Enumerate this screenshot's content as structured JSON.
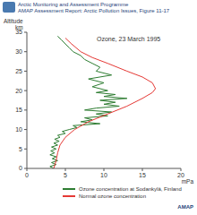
{
  "chart_data": {
    "type": "line",
    "header": [
      "Arctic Monitoring and Assessment Programme",
      "AMAP Assessment Report: Arctic Pollution Issues, Figure 11-17"
    ],
    "footer": "AMAP",
    "title": "Ozone, 23 March 1995",
    "x_label": "mPa",
    "y_label": "Altitude km",
    "xlim": [
      0,
      20
    ],
    "xticks": [
      0,
      5,
      10,
      15,
      20
    ],
    "ylim": [
      0,
      35
    ],
    "yticks": [
      0,
      5,
      10,
      15,
      20,
      25,
      30,
      35
    ],
    "grid": false,
    "series": [
      {
        "name": "Ozone concentration at Sodankylä, Finland",
        "color": "#2e7d32",
        "x": [
          3.5,
          3.0,
          3.8,
          3.2,
          4.0,
          3.3,
          3.8,
          3.0,
          3.6,
          3.1,
          3.8,
          3.2,
          4.0,
          3.5,
          4.2,
          3.6,
          4.3,
          4.0,
          5.0,
          4.6,
          5.5,
          6.5,
          6.0,
          9.5,
          7.0,
          8.5,
          7.5,
          10.5,
          9.0,
          11.0,
          7.5,
          9.0,
          12.0,
          10.0,
          11.5,
          9.5,
          13.0,
          10.0,
          11.5,
          9.0,
          10.5,
          8.5,
          10.0,
          8.0,
          11.0,
          9.0,
          9.5,
          8.5,
          7.5,
          7.0,
          6.0,
          5.5,
          5.0,
          4.5,
          4.0
        ],
        "values": [
          0,
          0.5,
          1,
          1.5,
          2,
          2.5,
          3,
          3.5,
          4,
          4.5,
          5,
          5.5,
          6,
          6.5,
          7,
          7.5,
          8,
          8.5,
          9,
          9.5,
          10,
          10.5,
          11,
          11.5,
          12,
          12.5,
          13,
          13.5,
          14,
          14.5,
          15,
          15.5,
          16,
          16.5,
          17,
          17.5,
          18,
          18.5,
          19,
          19.5,
          20,
          21,
          22,
          23,
          24,
          25,
          26,
          27,
          28,
          29,
          30,
          31,
          32,
          33,
          34
        ]
      },
      {
        "name": "Normal ozone concentration",
        "color": "#e53935",
        "x": [
          3.5,
          3.8,
          4.0,
          4.3,
          5.0,
          6.2,
          8.0,
          10.5,
          13.0,
          15.0,
          16.3,
          16.7,
          16.3,
          15.0,
          13.0,
          10.5,
          8.5,
          7.0,
          5.8,
          5.0
        ],
        "values": [
          0,
          2,
          4,
          6,
          8,
          10,
          12,
          14,
          16,
          18,
          19.5,
          20.5,
          22,
          23.5,
          25,
          27,
          28.5,
          30,
          32,
          33.5
        ]
      }
    ]
  }
}
